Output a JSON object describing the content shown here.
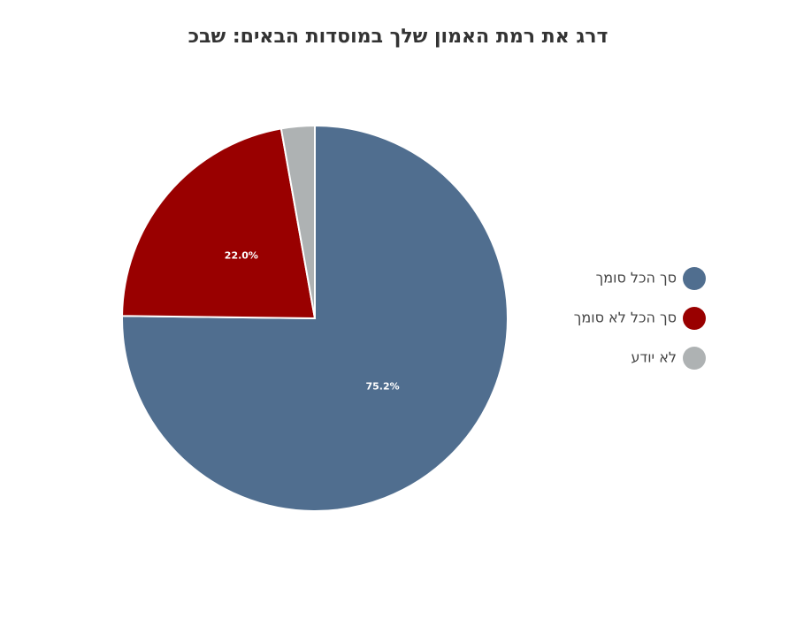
{
  "chart_data": {
    "type": "pie",
    "title": "דרג את רמת האמון שלך במוסדות הבאים: שבכ",
    "categories": [
      "סך הכל סומך",
      "סך הכל לא סומך",
      "לא יודע"
    ],
    "values": [
      75.2,
      22.0,
      2.8
    ],
    "value_labels": [
      "75.2%",
      "22.0%",
      null
    ],
    "colors": [
      "#506e8f",
      "#990000",
      "#aeb2b3"
    ],
    "legend": "right"
  }
}
